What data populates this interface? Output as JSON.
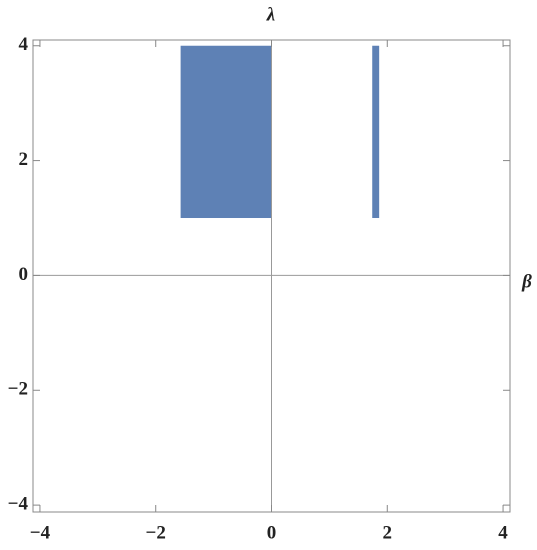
{
  "chart_data": {
    "type": "region",
    "xlabel": "β",
    "ylabel": "λ",
    "xlim": [
      -4.12,
      4.12
    ],
    "ylim": [
      -4.12,
      4.1
    ],
    "xticks": [
      {
        "value": -4,
        "label": "−4"
      },
      {
        "value": -2,
        "label": "−2"
      },
      0,
      2,
      4
    ],
    "yticks": [
      {
        "value": -4,
        "label": "−4"
      },
      {
        "value": -2,
        "label": "−2"
      },
      0,
      2,
      4
    ],
    "color": "#5e81b5",
    "regions": [
      {
        "x": [
          -1.57,
          0
        ],
        "y": [
          1,
          4
        ]
      },
      {
        "x": [
          1.74,
          1.86
        ],
        "y": [
          1,
          4
        ]
      }
    ]
  }
}
